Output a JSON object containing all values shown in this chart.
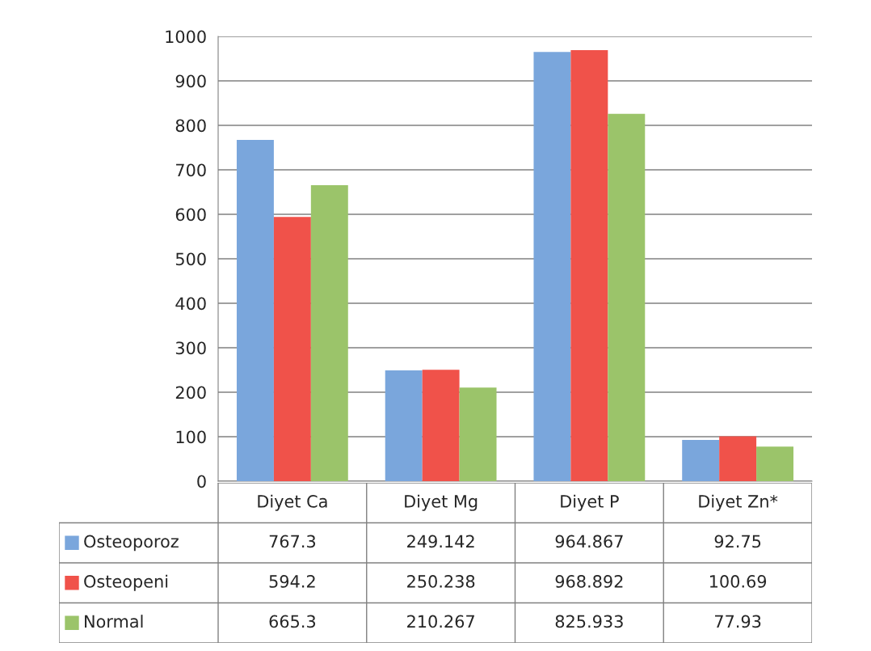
{
  "chart_data": {
    "type": "bar",
    "categories": [
      "Diyet Ca",
      "Diyet Mg",
      "Diyet P",
      "Diyet Zn*"
    ],
    "series": [
      {
        "name": "Osteoporoz",
        "color": "#7aa6dc",
        "values": [
          767.3,
          249.142,
          964.867,
          92.75
        ]
      },
      {
        "name": "Osteopeni",
        "color": "#f0524a",
        "values": [
          594.2,
          250.238,
          968.892,
          100.69
        ]
      },
      {
        "name": "Normal",
        "color": "#9bc46a",
        "values": [
          665.3,
          210.267,
          825.933,
          77.93
        ]
      }
    ],
    "ylim": [
      0,
      1000
    ],
    "yticks": [
      0,
      100,
      200,
      300,
      400,
      500,
      600,
      700,
      800,
      900,
      1000
    ],
    "grid": "y",
    "legend": "bottom",
    "data_labels": true
  }
}
